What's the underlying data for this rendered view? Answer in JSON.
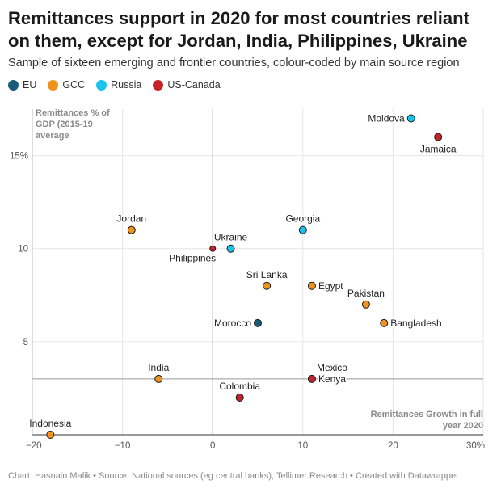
{
  "title": "Remittances support in 2020 for most countries reliant on them, except for Jordan, India, Philippines, Ukraine",
  "subtitle": "Sample of sixteen emerging and frontier countries, colour-coded by main source region",
  "footer": "Chart: Hasnain Malik • Source: National sources (eg central banks), Tellimer Research • Created with Datawrapper",
  "chart_data": {
    "type": "scatter",
    "title": "Remittances support in 2020 for most countries reliant on them, except for Jordan, India, Philippines, Ukraine",
    "subtitle": "Sample of sixteen emerging and frontier countries, colour-coded by main source region",
    "xlabel": "Remittances Growth in full year 2020",
    "ylabel": "Remittances % of GDP (2015-19 average",
    "xlim": [
      -20,
      30
    ],
    "ylim": [
      0,
      17.5
    ],
    "grid": true,
    "legend_position": "top-left",
    "x_ticks": [
      {
        "value": -20,
        "label": "−20"
      },
      {
        "value": -10,
        "label": "−10"
      },
      {
        "value": 0,
        "label": "0"
      },
      {
        "value": 10,
        "label": "10"
      },
      {
        "value": 20,
        "label": "20"
      },
      {
        "value": 30,
        "label": "30%"
      }
    ],
    "y_ticks": [
      {
        "value": 5,
        "label": "5"
      },
      {
        "value": 10,
        "label": "10"
      },
      {
        "value": 15,
        "label": "15%"
      }
    ],
    "reference_lines": {
      "x": 0,
      "y": 3
    },
    "groups": [
      {
        "name": "EU",
        "color": "#1a5a78"
      },
      {
        "name": "GCC",
        "color": "#f0921e"
      },
      {
        "name": "Russia",
        "color": "#19c3ec"
      },
      {
        "name": "US-Canada",
        "color": "#c4232a"
      }
    ],
    "points": [
      {
        "label": "Moldova",
        "x": 22,
        "y": 17,
        "group": "Russia",
        "anchor": "left"
      },
      {
        "label": "Jamaica",
        "x": 25,
        "y": 16,
        "group": "US-Canada",
        "anchor": "below"
      },
      {
        "label": "Jordan",
        "x": -9,
        "y": 11,
        "group": "GCC",
        "anchor": "above"
      },
      {
        "label": "Georgia",
        "x": 10,
        "y": 11,
        "group": "Russia",
        "anchor": "above"
      },
      {
        "label": "Ukraine",
        "x": 2,
        "y": 10,
        "group": "Russia",
        "anchor": "above"
      },
      {
        "label": "Philippines",
        "x": 0,
        "y": 10,
        "group": "US-Canada",
        "anchor": "below-left"
      },
      {
        "label": "Sri Lanka",
        "x": 6,
        "y": 8,
        "group": "GCC",
        "anchor": "above"
      },
      {
        "label": "Egypt",
        "x": 11,
        "y": 8,
        "group": "GCC",
        "anchor": "right"
      },
      {
        "label": "Pakistan",
        "x": 17,
        "y": 7,
        "group": "GCC",
        "anchor": "above"
      },
      {
        "label": "Morocco",
        "x": 5,
        "y": 6,
        "group": "EU",
        "anchor": "left"
      },
      {
        "label": "Bangladesh",
        "x": 19,
        "y": 6,
        "group": "GCC",
        "anchor": "right"
      },
      {
        "label": "India",
        "x": -6,
        "y": 3,
        "group": "GCC",
        "anchor": "above"
      },
      {
        "label": "Mexico",
        "x": 11,
        "y": 3,
        "group": "US-Canada",
        "anchor": "above-right"
      },
      {
        "label": "Kenya",
        "x": 11,
        "y": 3,
        "group": "US-Canada",
        "anchor": "right"
      },
      {
        "label": "Colombia",
        "x": 3,
        "y": 2,
        "group": "US-Canada",
        "anchor": "above"
      },
      {
        "label": "Indonesia",
        "x": -18,
        "y": 0,
        "group": "GCC",
        "anchor": "above"
      }
    ]
  }
}
